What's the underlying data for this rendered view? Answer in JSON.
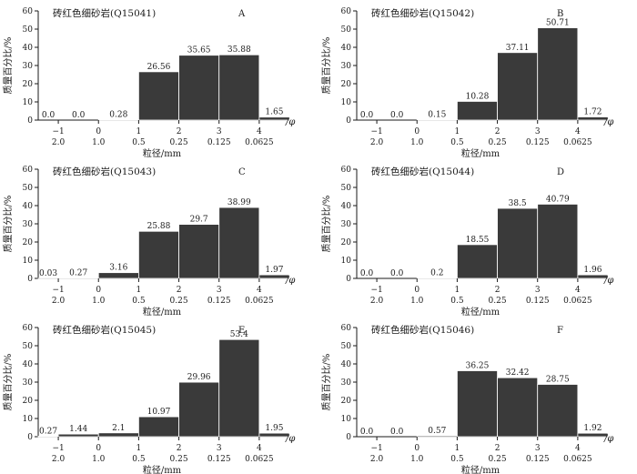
{
  "shared": {
    "ylabel": "质量百分比/%",
    "xlabel": "粒径/mm",
    "phi_unit": "/φ",
    "y_ticks": [
      "0",
      "10",
      "20",
      "30",
      "40",
      "50",
      "60"
    ],
    "phi_ticks": [
      "−1",
      "0",
      "1",
      "2",
      "3",
      "4"
    ],
    "mm_ticks": [
      "2.0",
      "1.0",
      "0.5",
      "0.25",
      "0.125",
      "0.0625"
    ],
    "bar_color": "#3a3a3a"
  },
  "chart_data": [
    {
      "type": "bar",
      "panel": "A",
      "title": "砖红色细砂岩(Q15041)",
      "xlabel": "粒径/mm",
      "ylabel": "质量百分比/%",
      "ylim": [
        0,
        60
      ],
      "phi_bins": [
        [
          -1.5,
          -1
        ],
        [
          -1,
          0
        ],
        [
          0,
          1
        ],
        [
          1,
          2
        ],
        [
          2,
          3
        ],
        [
          3,
          4
        ],
        [
          4,
          4.75
        ]
      ],
      "values": [
        0.0,
        0.0,
        0.28,
        26.56,
        35.65,
        35.88,
        1.65
      ],
      "labels": [
        "0.0",
        "0.0",
        "0.28",
        "26.56",
        "35.65",
        "35.88",
        "1.65"
      ]
    },
    {
      "type": "bar",
      "panel": "B",
      "title": "砖红色细砂岩(Q15042)",
      "xlabel": "粒径/mm",
      "ylabel": "质量百分比/%",
      "ylim": [
        0,
        60
      ],
      "phi_bins": [
        [
          -1.5,
          -1
        ],
        [
          -1,
          0
        ],
        [
          0,
          1
        ],
        [
          1,
          2
        ],
        [
          2,
          3
        ],
        [
          3,
          4
        ],
        [
          4,
          4.75
        ]
      ],
      "values": [
        0.0,
        0.0,
        0.15,
        10.28,
        37.11,
        50.71,
        1.72
      ],
      "labels": [
        "0.0",
        "0.0",
        "0.15",
        "10.28",
        "37.11",
        "50.71",
        "1.72"
      ]
    },
    {
      "type": "bar",
      "panel": "C",
      "title": "砖红色细砂岩(Q15043)",
      "xlabel": "粒径/mm",
      "ylabel": "质量百分比/%",
      "ylim": [
        0,
        60
      ],
      "phi_bins": [
        [
          -1.5,
          -1
        ],
        [
          -1,
          0
        ],
        [
          0,
          1
        ],
        [
          1,
          2
        ],
        [
          2,
          3
        ],
        [
          3,
          4
        ],
        [
          4,
          4.75
        ]
      ],
      "values": [
        0.03,
        0.27,
        3.16,
        25.88,
        29.7,
        38.99,
        1.97
      ],
      "labels": [
        "0.03",
        "0.27",
        "3.16",
        "25.88",
        "29.7",
        "38.99",
        "1.97"
      ]
    },
    {
      "type": "bar",
      "panel": "D",
      "title": "砖红色细砂岩(Q15044)",
      "xlabel": "粒径/mm",
      "ylabel": "质量百分比/%",
      "ylim": [
        0,
        60
      ],
      "phi_bins": [
        [
          -1.5,
          -1
        ],
        [
          -1,
          0
        ],
        [
          0,
          1
        ],
        [
          1,
          2
        ],
        [
          2,
          3
        ],
        [
          3,
          4
        ],
        [
          4,
          4.75
        ]
      ],
      "values": [
        0.0,
        0.0,
        0.2,
        18.55,
        38.5,
        40.79,
        1.96
      ],
      "labels": [
        "0.0",
        "0.0",
        "0.2",
        "18.55",
        "38.5",
        "40.79",
        "1.96"
      ]
    },
    {
      "type": "bar",
      "panel": "E",
      "title": "砖红色细砂岩(Q15045)",
      "xlabel": "粒径/mm",
      "ylabel": "质量百分比/%",
      "ylim": [
        0,
        60
      ],
      "phi_bins": [
        [
          -1.5,
          -1
        ],
        [
          -1,
          0
        ],
        [
          0,
          1
        ],
        [
          1,
          2
        ],
        [
          2,
          3
        ],
        [
          3,
          4
        ],
        [
          4,
          4.75
        ]
      ],
      "values": [
        0.27,
        1.44,
        2.1,
        10.97,
        29.96,
        53.4,
        1.95
      ],
      "labels": [
        "0.27",
        "1.44",
        "2.1",
        "10.97",
        "29.96",
        "53.4",
        "1.95"
      ]
    },
    {
      "type": "bar",
      "panel": "F",
      "title": "砖红色细砂岩(Q15046)",
      "xlabel": "粒径/mm",
      "ylabel": "质量百分比/%",
      "ylim": [
        0,
        60
      ],
      "phi_bins": [
        [
          -1.5,
          -1
        ],
        [
          -1,
          0
        ],
        [
          0,
          1
        ],
        [
          1,
          2
        ],
        [
          2,
          3
        ],
        [
          3,
          4
        ],
        [
          4,
          4.75
        ]
      ],
      "values": [
        0.0,
        0.0,
        0.57,
        36.25,
        32.42,
        28.75,
        1.92
      ],
      "labels": [
        "0.0",
        "0.0",
        "0.57",
        "36.25",
        "32.42",
        "28.75",
        "1.92"
      ]
    }
  ]
}
